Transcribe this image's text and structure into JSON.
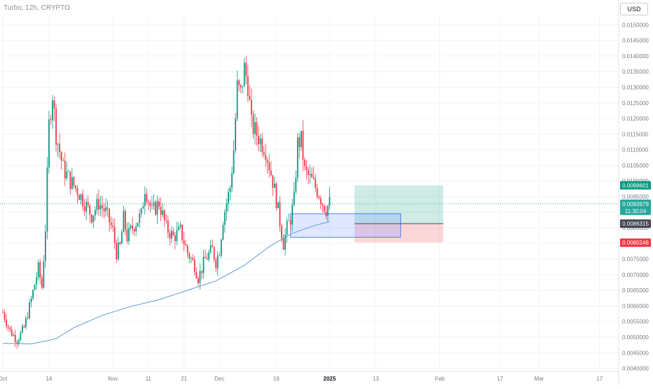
{
  "header": {
    "symbol": "Turbo, 12h, CRYPTO",
    "currency": "USD"
  },
  "chart_data": {
    "type": "candlestick",
    "y_axis": {
      "side": "right",
      "range": [
        0.0039,
        0.0153
      ],
      "ticks": [
        "0.0040000",
        "0.0045000",
        "0.0050000",
        "0.0055000",
        "0.0060000",
        "0.0065000",
        "0.0070000",
        "0.0075000",
        "0.0080000",
        "0.0085000",
        "0.0090000",
        "0.0095000",
        "0.0100000",
        "0.0105000",
        "0.0110000",
        "0.0115000",
        "0.0120000",
        "0.0125000",
        "0.0130000",
        "0.0135000",
        "0.0140000",
        "0.0145000",
        "0.0150000"
      ],
      "tick_values": [
        0.004,
        0.0045,
        0.005,
        0.0055,
        0.006,
        0.0065,
        0.007,
        0.0075,
        0.008,
        0.0085,
        0.009,
        0.0095,
        0.01,
        0.0105,
        0.011,
        0.0115,
        0.012,
        0.0125,
        0.013,
        0.0135,
        0.014,
        0.0145,
        0.015
      ]
    },
    "x_axis": {
      "labels": [
        "Oct",
        "14",
        "Nov",
        "11",
        "21",
        "Dec",
        "16",
        "2025",
        "13",
        "Feb",
        "17",
        "Mar",
        "17"
      ],
      "label_days": [
        0,
        13,
        31,
        41,
        51,
        61,
        77,
        92,
        105,
        123,
        140,
        151,
        168
      ],
      "range_days": [
        0,
        170
      ]
    },
    "price_levels": [
      {
        "label": "0.0098601",
        "value": 0.0098601,
        "color": "#089981"
      },
      {
        "label": "0.0092679",
        "sublabel": "11:30:04",
        "value": 0.0092679,
        "color": "#26a69a"
      },
      {
        "label": "0.0086315",
        "value": 0.0086315,
        "color": "#434651"
      },
      {
        "label": "0.0080246",
        "value": 0.0080246,
        "color": "#f23645"
      }
    ],
    "long_position": {
      "start_day": 99,
      "end_day": 124,
      "entry": 0.0086315,
      "target": 0.0098601,
      "stop": 0.0080246
    },
    "zone_box": {
      "start_day": 81,
      "end_day": 112,
      "top": 0.00895,
      "bottom": 0.0082
    },
    "keypoints": [
      [
        0,
        0.0058
      ],
      [
        2,
        0.0052
      ],
      [
        4,
        0.0049
      ],
      [
        6,
        0.0053
      ],
      [
        8,
        0.0062
      ],
      [
        10,
        0.0072
      ],
      [
        11,
        0.0066
      ],
      [
        12,
        0.0085
      ],
      [
        13,
        0.0118
      ],
      [
        14,
        0.0128
      ],
      [
        15,
        0.0115
      ],
      [
        17,
        0.0104
      ],
      [
        19,
        0.01
      ],
      [
        21,
        0.0097
      ],
      [
        23,
        0.0093
      ],
      [
        25,
        0.0089
      ],
      [
        27,
        0.0093
      ],
      [
        29,
        0.009
      ],
      [
        31,
        0.0084
      ],
      [
        32,
        0.0077
      ],
      [
        33,
        0.0079
      ],
      [
        34,
        0.0088
      ],
      [
        35,
        0.0082
      ],
      [
        37,
        0.0086
      ],
      [
        39,
        0.0089
      ],
      [
        40,
        0.0098
      ],
      [
        41,
        0.0094
      ],
      [
        42,
        0.009
      ],
      [
        44,
        0.0093
      ],
      [
        46,
        0.0085
      ],
      [
        48,
        0.0082
      ],
      [
        50,
        0.0084
      ],
      [
        52,
        0.0077
      ],
      [
        54,
        0.0073
      ],
      [
        55,
        0.0069
      ],
      [
        57,
        0.0075
      ],
      [
        59,
        0.0078
      ],
      [
        60,
        0.0074
      ],
      [
        61,
        0.0078
      ],
      [
        62,
        0.0088
      ],
      [
        64,
        0.0098
      ],
      [
        65,
        0.011
      ],
      [
        66,
        0.013
      ],
      [
        67,
        0.0128
      ],
      [
        68,
        0.0136
      ],
      [
        69,
        0.0131
      ],
      [
        70,
        0.0118
      ],
      [
        72,
        0.0114
      ],
      [
        74,
        0.011
      ],
      [
        76,
        0.01
      ],
      [
        77,
        0.0094
      ],
      [
        78,
        0.0087
      ],
      [
        79,
        0.008
      ],
      [
        80,
        0.0085
      ],
      [
        81,
        0.0088
      ],
      [
        82,
        0.0094
      ],
      [
        83,
        0.0112
      ],
      [
        84,
        0.0113
      ],
      [
        85,
        0.0103
      ],
      [
        87,
        0.01
      ],
      [
        89,
        0.0096
      ],
      [
        90,
        0.0093
      ],
      [
        91,
        0.0091
      ],
      [
        92,
        0.0093
      ]
    ],
    "candle_step_days": 0.5,
    "moving_average": {
      "color": "#5b9bd5",
      "points": [
        [
          0,
          0.0048
        ],
        [
          8,
          0.00478
        ],
        [
          15,
          0.00495
        ],
        [
          20,
          0.0053
        ],
        [
          28,
          0.0057
        ],
        [
          36,
          0.00598
        ],
        [
          44,
          0.0062
        ],
        [
          52,
          0.0065
        ],
        [
          60,
          0.0068
        ],
        [
          68,
          0.0073
        ],
        [
          75,
          0.0079
        ],
        [
          81,
          0.0083
        ],
        [
          87,
          0.00855
        ],
        [
          92,
          0.0087
        ]
      ]
    },
    "up_color": "#089981",
    "down_color": "#f23645"
  }
}
